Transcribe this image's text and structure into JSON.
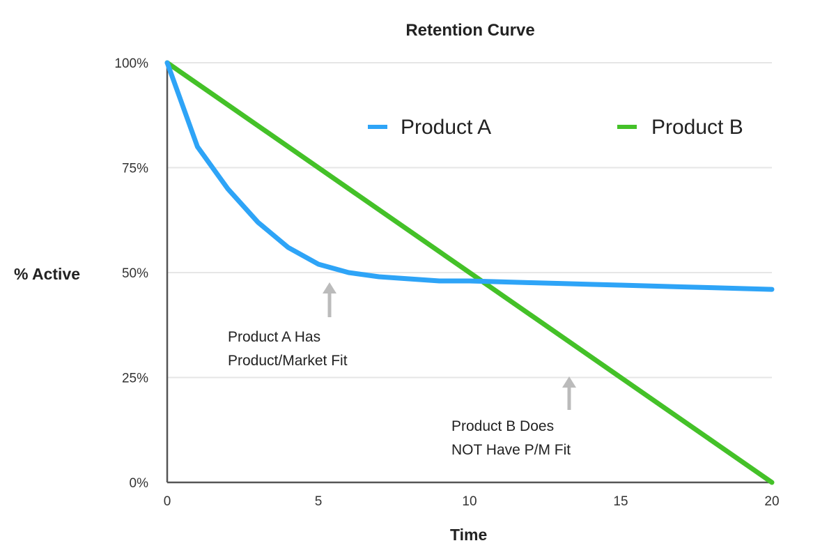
{
  "chart_data": {
    "type": "line",
    "title": "Retention Curve",
    "xlabel": "Time",
    "ylabel": "% Active",
    "xlim": [
      0,
      20
    ],
    "ylim": [
      0,
      100
    ],
    "x_ticks": [
      "0",
      "5",
      "10",
      "15",
      "20"
    ],
    "y_ticks": [
      "0%",
      "25%",
      "50%",
      "75%",
      "100%"
    ],
    "grid": true,
    "legend_position": "top-right",
    "series": [
      {
        "name": "Product A",
        "color": "#2ea4f7",
        "x": [
          0,
          1,
          2,
          3,
          4,
          5,
          6,
          7,
          8,
          9,
          10,
          11,
          12,
          13,
          14,
          15,
          16,
          17,
          18,
          19,
          20
        ],
        "y": [
          100,
          80,
          70,
          62,
          56,
          52,
          50,
          49,
          48.5,
          48,
          48,
          47.8,
          47.6,
          47.4,
          47.2,
          47,
          46.8,
          46.6,
          46.4,
          46.2,
          46
        ]
      },
      {
        "name": "Product B",
        "color": "#44c128",
        "x": [
          0,
          20
        ],
        "y": [
          100,
          0
        ]
      }
    ],
    "annotations": [
      {
        "lines": [
          "Product A Has",
          "Product/Market Fit"
        ]
      },
      {
        "lines": [
          "Product B Does",
          "NOT Have P/M Fit"
        ]
      }
    ]
  }
}
